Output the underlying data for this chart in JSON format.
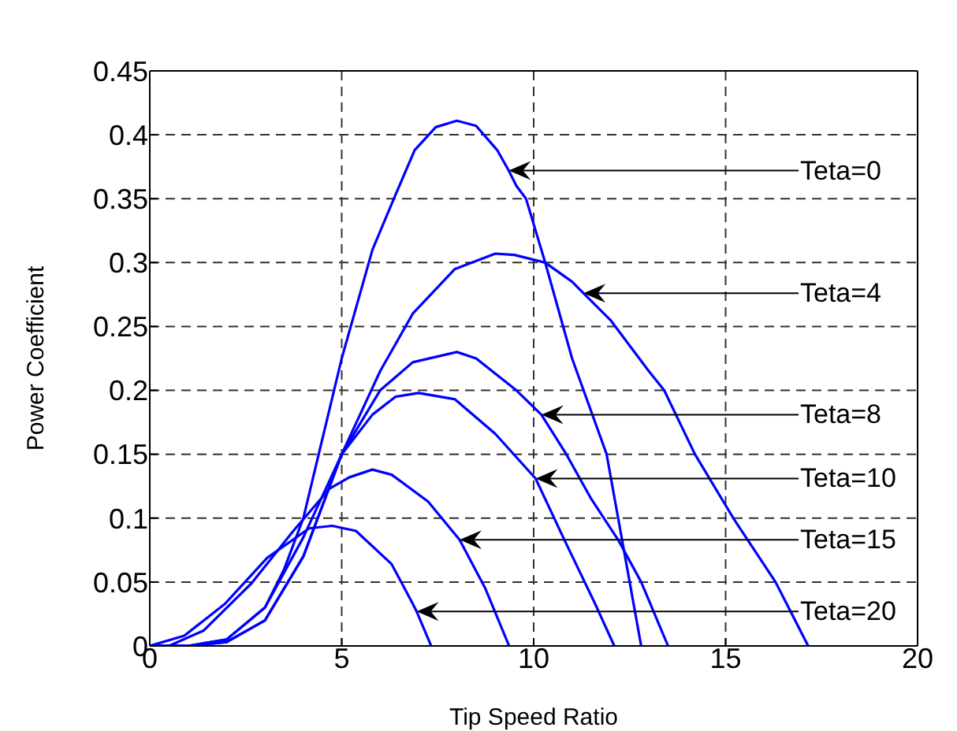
{
  "chart_data": {
    "type": "line",
    "xlabel": "Tip Speed Ratio",
    "ylabel": "Power Coefficient",
    "xlim": [
      0,
      20
    ],
    "xticks": [
      0,
      5,
      10,
      15,
      20
    ],
    "ylim": [
      0,
      0.45
    ],
    "yticks": [
      0,
      0.05,
      0.1,
      0.15,
      0.2,
      0.25,
      0.3,
      0.35,
      0.4,
      0.45
    ],
    "grid": true,
    "marker": "none",
    "line_style": "solid",
    "series": [
      {
        "color": "#0000ff",
        "x": [
          0,
          1,
          2,
          3,
          3.5,
          4,
          4.4,
          5,
          5.8,
          6.4,
          6.9,
          7.45,
          8,
          8.5,
          9.05,
          9.35,
          9.55,
          9.8,
          10.3,
          11,
          11.9,
          12.2,
          12.5,
          12.8
        ],
        "values": [
          0,
          0,
          0.005,
          0.03,
          0.06,
          0.1,
          0.15,
          0.225,
          0.31,
          0.353,
          0.388,
          0.406,
          0.411,
          0.407,
          0.388,
          0.372,
          0.36,
          0.35,
          0.3,
          0.225,
          0.15,
          0.1,
          0.05,
          0
        ]
      },
      {
        "color": "#0000ff",
        "x": [
          0,
          1,
          2,
          3,
          4,
          5,
          6,
          6.85,
          7.95,
          9,
          9.5,
          10.3,
          11,
          11.3,
          12,
          13,
          13.4,
          14.2,
          15.2,
          16.3,
          17.15
        ],
        "values": [
          0,
          0,
          0.005,
          0.03,
          0.085,
          0.15,
          0.215,
          0.26,
          0.295,
          0.307,
          0.306,
          0.3,
          0.285,
          0.276,
          0.255,
          0.215,
          0.2,
          0.15,
          0.1,
          0.05,
          0
        ]
      },
      {
        "color": "#0000ff",
        "x": [
          0,
          1,
          2,
          3,
          4,
          5,
          6,
          6.85,
          8,
          8.5,
          9.55,
          10.2,
          10.85,
          11.5,
          12.2,
          12.8,
          13.5
        ],
        "values": [
          0,
          0,
          0.003,
          0.02,
          0.07,
          0.15,
          0.2,
          0.222,
          0.23,
          0.225,
          0.2,
          0.181,
          0.15,
          0.115,
          0.083,
          0.05,
          0
        ]
      },
      {
        "color": "#0000ff",
        "x": [
          0,
          1,
          2,
          3,
          4,
          5,
          5.8,
          6.4,
          7,
          7.95,
          9,
          10.05,
          10.8,
          11.6,
          12.1
        ],
        "values": [
          0,
          0,
          0.003,
          0.02,
          0.07,
          0.15,
          0.181,
          0.195,
          0.198,
          0.193,
          0.166,
          0.131,
          0.083,
          0.033,
          0
        ]
      },
      {
        "color": "#0000ff",
        "x": [
          0,
          0.5,
          1.4,
          2.65,
          3.74,
          4.68,
          5.2,
          5.8,
          6.3,
          7.25,
          8.07,
          8.74,
          9.36
        ],
        "values": [
          0,
          0,
          0.012,
          0.049,
          0.09,
          0.123,
          0.132,
          0.138,
          0.134,
          0.113,
          0.083,
          0.045,
          0
        ]
      },
      {
        "color": "#0000ff",
        "x": [
          0,
          0.9,
          1.96,
          3.06,
          4.15,
          4.75,
          5.37,
          6.3,
          6.85,
          6.95,
          7.33
        ],
        "values": [
          0,
          0.008,
          0.033,
          0.069,
          0.092,
          0.094,
          0.09,
          0.064,
          0.033,
          0.027,
          0
        ]
      }
    ],
    "annotations": [
      {
        "text": "Teta=0",
        "x": 9.35,
        "y": 0.372
      },
      {
        "text": "Teta=4",
        "x": 11.3,
        "y": 0.276
      },
      {
        "text": "Teta=8",
        "x": 10.2,
        "y": 0.181
      },
      {
        "text": "Teta=10",
        "x": 10.05,
        "y": 0.131
      },
      {
        "text": "Teta=15",
        "x": 8.07,
        "y": 0.083
      },
      {
        "text": "Teta=20",
        "x": 6.95,
        "y": 0.027
      }
    ]
  }
}
